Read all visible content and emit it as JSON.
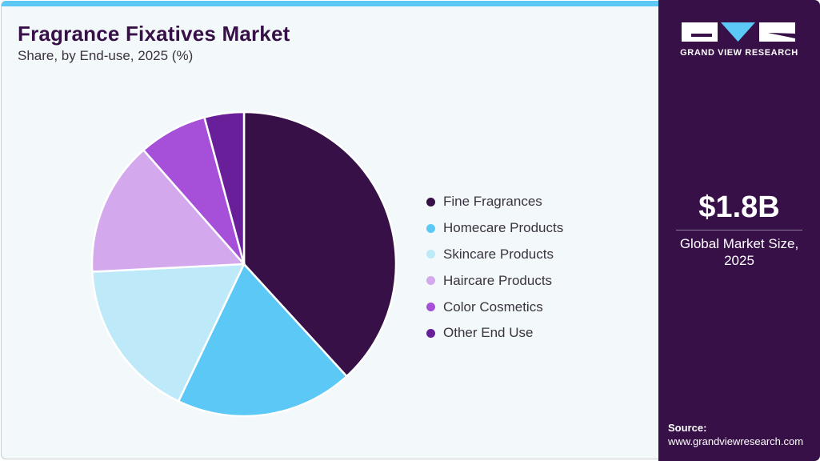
{
  "header": {
    "title": "Fragrance Fixatives Market",
    "subtitle": "Share, by End-use, 2025 (%)"
  },
  "chart_data": {
    "type": "pie",
    "title": "Fragrance Fixatives Market",
    "subtitle": "Share, by End-use, 2025 (%)",
    "categories": [
      "Fine Fragrances",
      "Homecare Products",
      "Skincare Products",
      "Haircare Products",
      "Color Cosmetics",
      "Other End Use"
    ],
    "values": [
      38.2,
      18.9,
      17.1,
      14.3,
      7.3,
      4.2
    ],
    "colors": [
      "#371047",
      "#5bc8f5",
      "#bde9f9",
      "#d4a8ec",
      "#a64fd8",
      "#6a1f9a"
    ],
    "legend_position": "right",
    "start_angle": "12 o'clock, clockwise"
  },
  "sidebar": {
    "logo_text": "GRAND VIEW RESEARCH",
    "market_size": "$1.8B",
    "market_caption_line1": "Global Market Size,",
    "market_caption_line2": "2025",
    "source_label": "Source:",
    "source_url": "www.grandviewresearch.com"
  }
}
